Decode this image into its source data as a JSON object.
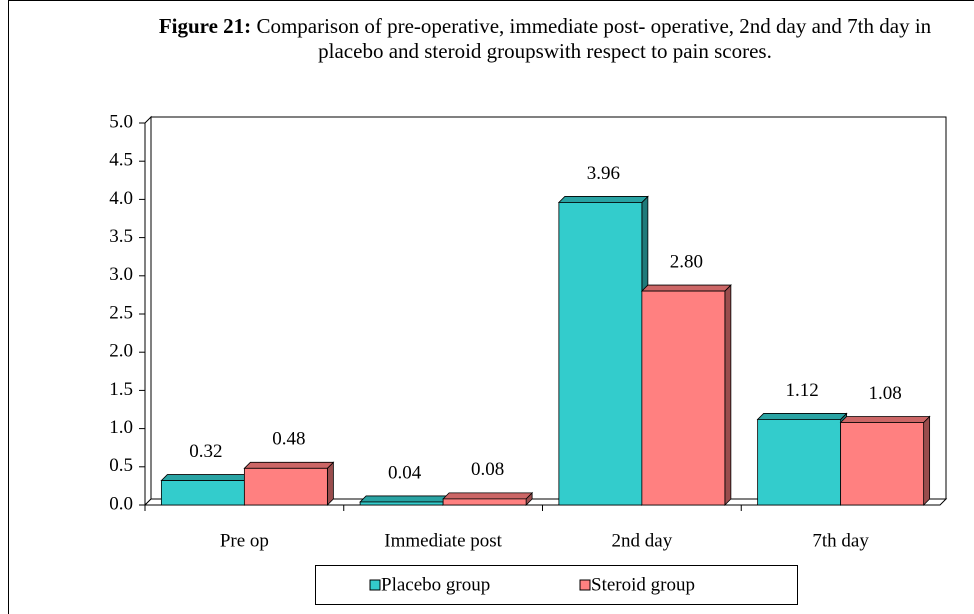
{
  "chart_data": {
    "type": "bar",
    "title_label": "Figure 21:",
    "title": "Comparison of pre-operative, immediate post- operative, 2nd day and 7th day in placebo and steroid groupswith respect to pain scores.",
    "categories": [
      "Pre op",
      "Immediate post",
      "2nd day",
      "7th day"
    ],
    "series": [
      {
        "name": "Placebo group",
        "color": "#33cccc",
        "values": [
          0.32,
          0.04,
          3.96,
          1.12
        ],
        "value_labels": [
          "0.32",
          "0.04",
          "3.96",
          "1.12"
        ]
      },
      {
        "name": "Steroid group",
        "color": "#ff8080",
        "values": [
          0.48,
          0.08,
          2.8,
          1.08
        ],
        "value_labels": [
          "0.48",
          "0.08",
          "2.80",
          "1.08"
        ]
      }
    ],
    "ylim": [
      0,
      5
    ],
    "yticks": [
      {
        "value": 0,
        "label": "0.0"
      },
      0.5,
      {
        "value": 1,
        "label": "1.0"
      },
      1.5,
      {
        "value": 2,
        "label": "2.0"
      },
      2.5,
      {
        "value": 3,
        "label": "3.0"
      },
      3.5,
      {
        "value": 4,
        "label": "4.0"
      },
      4.5,
      {
        "value": 5,
        "label": "5.0"
      }
    ],
    "legend": "bottom"
  }
}
